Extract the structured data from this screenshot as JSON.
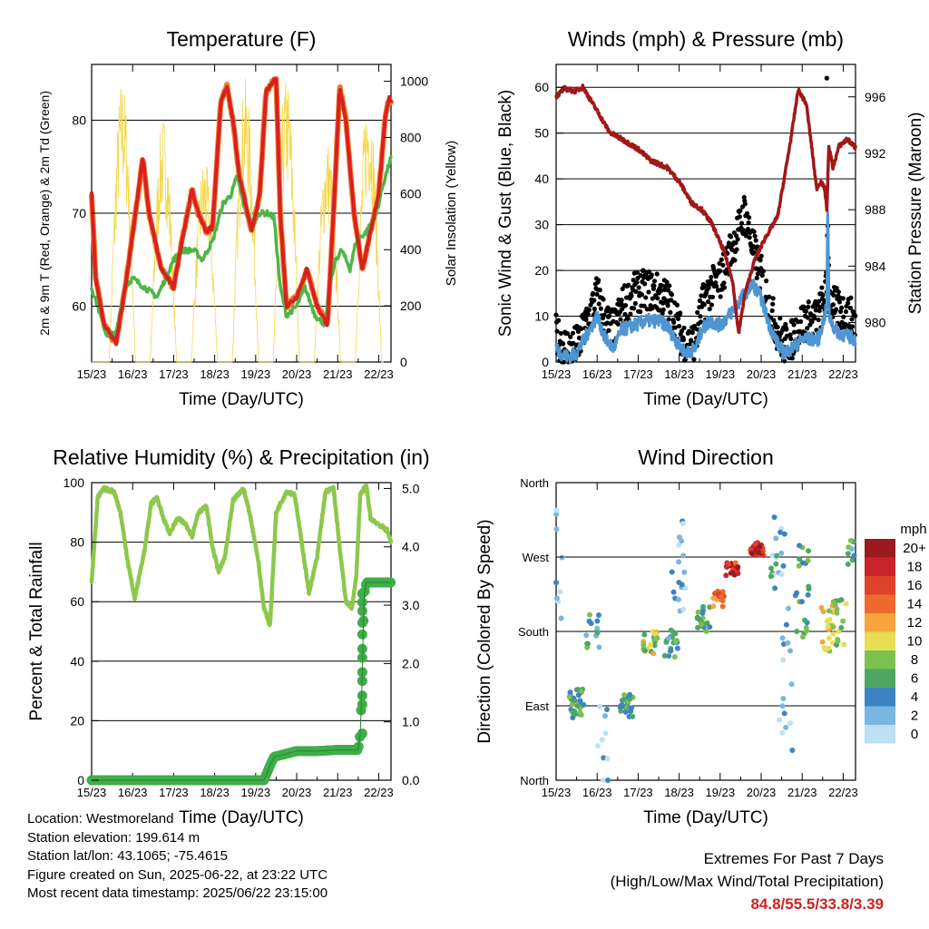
{
  "x_ticks": [
    "15/23",
    "16/23",
    "17/23",
    "18/23",
    "19/23",
    "20/23",
    "21/23",
    "22/23"
  ],
  "x_label": "Time (Day/UTC)",
  "temperature": {
    "title": "Temperature (F)",
    "ylabel_left": "2m & 9m T (Red, Orange) & 2m Td (Green)",
    "ylabel_right": "Solar Insolation (Yellow)",
    "ylim": [
      54,
      86
    ],
    "y2lim": [
      0,
      1060
    ],
    "yticks": [
      60,
      70,
      80
    ],
    "y2ticks": [
      0,
      200,
      400,
      600,
      800,
      1000
    ],
    "colors": {
      "t2m": "#d92020",
      "t9m": "#f07d2a",
      "td": "#4fb548",
      "solar": "#f5d84a"
    },
    "t2m": [
      [
        0.0,
        72
      ],
      [
        0.1,
        63
      ],
      [
        0.3,
        58
      ],
      [
        0.6,
        56
      ],
      [
        0.85,
        63
      ],
      [
        1.1,
        71
      ],
      [
        1.25,
        76
      ],
      [
        1.4,
        70
      ],
      [
        1.7,
        64
      ],
      [
        2.0,
        62
      ],
      [
        2.2,
        67
      ],
      [
        2.45,
        72.5
      ],
      [
        2.6,
        70
      ],
      [
        2.8,
        68
      ],
      [
        2.95,
        68.5
      ],
      [
        3.15,
        82
      ],
      [
        3.3,
        83.6
      ],
      [
        3.45,
        80
      ],
      [
        3.6,
        74
      ],
      [
        3.9,
        68
      ],
      [
        4.1,
        72
      ],
      [
        4.25,
        83
      ],
      [
        4.5,
        84.6
      ],
      [
        4.6,
        70
      ],
      [
        4.75,
        60
      ],
      [
        5.0,
        61
      ],
      [
        5.25,
        64
      ],
      [
        5.5,
        60
      ],
      [
        5.75,
        58
      ],
      [
        5.9,
        70
      ],
      [
        6.05,
        83.6
      ],
      [
        6.2,
        80
      ],
      [
        6.4,
        70
      ],
      [
        6.6,
        64
      ],
      [
        6.8,
        68
      ],
      [
        7.0,
        72
      ],
      [
        7.15,
        80
      ],
      [
        7.25,
        82.4
      ],
      [
        7.3,
        82
      ]
    ],
    "td": [
      [
        0.0,
        62
      ],
      [
        0.15,
        60
      ],
      [
        0.35,
        57
      ],
      [
        0.6,
        57
      ],
      [
        0.8,
        62
      ],
      [
        1.0,
        63
      ],
      [
        1.3,
        62
      ],
      [
        1.6,
        61
      ],
      [
        1.8,
        63
      ],
      [
        2.0,
        65
      ],
      [
        2.2,
        66
      ],
      [
        2.5,
        66
      ],
      [
        2.7,
        65
      ],
      [
        2.95,
        67
      ],
      [
        3.2,
        71
      ],
      [
        3.4,
        72
      ],
      [
        3.55,
        74
      ],
      [
        3.7,
        71
      ],
      [
        3.9,
        69
      ],
      [
        4.1,
        70
      ],
      [
        4.3,
        70
      ],
      [
        4.45,
        69.5
      ],
      [
        4.6,
        62
      ],
      [
        4.75,
        59
      ],
      [
        5.0,
        60
      ],
      [
        5.2,
        62
      ],
      [
        5.45,
        59
      ],
      [
        5.7,
        58
      ],
      [
        5.8,
        62
      ],
      [
        5.95,
        65
      ],
      [
        6.1,
        66
      ],
      [
        6.3,
        64
      ],
      [
        6.45,
        67
      ],
      [
        6.7,
        68
      ],
      [
        6.95,
        70
      ],
      [
        7.1,
        73
      ],
      [
        7.3,
        76
      ]
    ],
    "solar_peak_days": [
      0.75,
      1.75,
      2.75,
      3.75,
      4.75,
      5.75,
      6.75
    ],
    "solar_peak_values": [
      1020,
      880,
      730,
      1010,
      1020,
      800,
      980
    ]
  },
  "winds": {
    "title": "Winds (mph) & Pressure (mb)",
    "ylabel_left": "Sonic Wind & Gust (Blue, Black)",
    "ylabel_right": "Station Pressure (Maroon)",
    "ylim": [
      0,
      65
    ],
    "y2lim": [
      977.2,
      998.3
    ],
    "yticks": [
      0,
      10,
      20,
      30,
      40,
      50,
      60
    ],
    "y2ticks": [
      980,
      984,
      988,
      992,
      996
    ],
    "colors": {
      "wind": "#4f95d2",
      "gust": "#000000",
      "pressure": "#a01818"
    },
    "pressure": [
      [
        0.0,
        996
      ],
      [
        0.2,
        996.6
      ],
      [
        0.45,
        996.4
      ],
      [
        0.65,
        996.7
      ],
      [
        1.0,
        995
      ],
      [
        1.3,
        993.5
      ],
      [
        1.6,
        993
      ],
      [
        2.0,
        992.3
      ],
      [
        2.3,
        991.5
      ],
      [
        2.7,
        991
      ],
      [
        3.0,
        990
      ],
      [
        3.3,
        988.5
      ],
      [
        3.55,
        988
      ],
      [
        3.8,
        987
      ],
      [
        4.1,
        985
      ],
      [
        4.3,
        983
      ],
      [
        4.45,
        979.2
      ],
      [
        4.6,
        982
      ],
      [
        4.85,
        984.5
      ],
      [
        5.1,
        986
      ],
      [
        5.4,
        987.5
      ],
      [
        5.55,
        990
      ],
      [
        5.75,
        993.5
      ],
      [
        5.9,
        996.5
      ],
      [
        6.1,
        995.5
      ],
      [
        6.25,
        992
      ],
      [
        6.35,
        989.5
      ],
      [
        6.45,
        990
      ],
      [
        6.55,
        989.5
      ],
      [
        6.6,
        988
      ],
      [
        6.65,
        992.5
      ],
      [
        6.75,
        991
      ],
      [
        6.9,
        992.5
      ],
      [
        7.1,
        993
      ],
      [
        7.3,
        992.4
      ]
    ],
    "wind": [
      [
        0.0,
        3
      ],
      [
        0.1,
        2
      ],
      [
        0.3,
        1
      ],
      [
        0.5,
        2
      ],
      [
        0.75,
        6
      ],
      [
        1.0,
        10
      ],
      [
        1.2,
        5
      ],
      [
        1.4,
        3
      ],
      [
        1.6,
        7
      ],
      [
        1.9,
        8
      ],
      [
        2.2,
        9
      ],
      [
        2.5,
        9
      ],
      [
        2.7,
        8
      ],
      [
        2.9,
        5
      ],
      [
        3.05,
        3
      ],
      [
        3.2,
        2
      ],
      [
        3.4,
        3
      ],
      [
        3.55,
        7
      ],
      [
        3.75,
        9
      ],
      [
        4.0,
        8
      ],
      [
        4.2,
        10
      ],
      [
        4.45,
        13
      ],
      [
        4.6,
        15
      ],
      [
        4.8,
        17
      ],
      [
        5.0,
        14
      ],
      [
        5.2,
        8
      ],
      [
        5.4,
        4
      ],
      [
        5.55,
        2
      ],
      [
        5.75,
        3
      ],
      [
        6.0,
        5
      ],
      [
        6.2,
        5
      ],
      [
        6.4,
        5
      ],
      [
        6.6,
        12
      ],
      [
        6.62,
        33.8
      ],
      [
        6.66,
        10
      ],
      [
        6.8,
        7
      ],
      [
        7.0,
        6
      ],
      [
        7.3,
        5
      ]
    ],
    "gust": [
      [
        0.0,
        5
      ],
      [
        0.15,
        3
      ],
      [
        0.35,
        2
      ],
      [
        0.55,
        3
      ],
      [
        0.8,
        9
      ],
      [
        1.0,
        14
      ],
      [
        1.2,
        8
      ],
      [
        1.4,
        6
      ],
      [
        1.6,
        11
      ],
      [
        1.9,
        14
      ],
      [
        2.2,
        15
      ],
      [
        2.5,
        14
      ],
      [
        2.7,
        13
      ],
      [
        2.9,
        9
      ],
      [
        3.05,
        5
      ],
      [
        3.2,
        3
      ],
      [
        3.4,
        4
      ],
      [
        3.55,
        11
      ],
      [
        3.75,
        15
      ],
      [
        4.0,
        17
      ],
      [
        4.2,
        22
      ],
      [
        4.45,
        28
      ],
      [
        4.6,
        32
      ],
      [
        4.8,
        24
      ],
      [
        5.0,
        18
      ],
      [
        5.2,
        11
      ],
      [
        5.4,
        6
      ],
      [
        5.55,
        3
      ],
      [
        5.75,
        4
      ],
      [
        6.0,
        8
      ],
      [
        6.2,
        8
      ],
      [
        6.4,
        9
      ],
      [
        6.6,
        15
      ],
      [
        6.62,
        33
      ],
      [
        6.66,
        13
      ],
      [
        6.8,
        11
      ],
      [
        7.0,
        10
      ],
      [
        7.3,
        8
      ]
    ],
    "gust_max": [
      6.6,
      62
    ]
  },
  "rh": {
    "title": "Relative Humidity (%) & Precipitation (in)",
    "ylabel_left": "Percent & Total Rainfall",
    "ylim": [
      0,
      100
    ],
    "y2lim": [
      0,
      5.1
    ],
    "yticks": [
      0,
      20,
      40,
      60,
      80,
      100
    ],
    "y2ticks": [
      "0.0",
      "1.0",
      "2.0",
      "3.0",
      "4.0",
      "5.0"
    ],
    "colors": {
      "rh": "#8cc84b",
      "precip": "#3fae49"
    },
    "rh": [
      [
        0.0,
        67
      ],
      [
        0.15,
        95
      ],
      [
        0.3,
        98
      ],
      [
        0.55,
        97
      ],
      [
        0.7,
        90
      ],
      [
        0.9,
        72
      ],
      [
        1.05,
        61
      ],
      [
        1.3,
        78
      ],
      [
        1.45,
        93
      ],
      [
        1.6,
        95
      ],
      [
        1.75,
        88
      ],
      [
        1.9,
        83
      ],
      [
        2.1,
        88
      ],
      [
        2.3,
        86
      ],
      [
        2.45,
        82
      ],
      [
        2.6,
        90
      ],
      [
        2.8,
        92
      ],
      [
        2.95,
        78
      ],
      [
        3.1,
        70
      ],
      [
        3.25,
        75
      ],
      [
        3.45,
        94
      ],
      [
        3.7,
        98
      ],
      [
        3.85,
        90
      ],
      [
        4.05,
        75
      ],
      [
        4.2,
        58
      ],
      [
        4.35,
        52
      ],
      [
        4.5,
        90
      ],
      [
        4.75,
        97
      ],
      [
        4.95,
        96
      ],
      [
        5.1,
        82
      ],
      [
        5.3,
        63
      ],
      [
        5.5,
        75
      ],
      [
        5.7,
        97
      ],
      [
        5.9,
        98
      ],
      [
        6.05,
        78
      ],
      [
        6.2,
        60
      ],
      [
        6.35,
        58
      ],
      [
        6.45,
        68
      ],
      [
        6.55,
        96
      ],
      [
        6.7,
        99
      ],
      [
        6.8,
        88
      ],
      [
        7.0,
        86
      ],
      [
        7.2,
        84
      ],
      [
        7.3,
        80
      ]
    ],
    "precip": [
      [
        0.0,
        0
      ],
      [
        4.2,
        0
      ],
      [
        4.35,
        0.25
      ],
      [
        4.45,
        0.4
      ],
      [
        5.0,
        0.5
      ],
      [
        5.5,
        0.5
      ],
      [
        6.0,
        0.52
      ],
      [
        6.5,
        0.52
      ],
      [
        6.55,
        0.8
      ],
      [
        6.58,
        1.4
      ],
      [
        6.6,
        1.85
      ],
      [
        6.62,
        2.5
      ],
      [
        6.65,
        3.2
      ],
      [
        6.7,
        3.39
      ],
      [
        7.3,
        3.39
      ]
    ]
  },
  "wind_dir": {
    "title": "Wind Direction",
    "ylabel_left": "Direction (Colored By Speed)",
    "ytick_labels": [
      "North",
      "East",
      "South",
      "West",
      "North"
    ],
    "ylim": [
      0,
      360
    ],
    "colorbar_unit": "mph",
    "colorbar_labels": [
      "20+",
      "18",
      "16",
      "14",
      "12",
      "10",
      "8",
      "6",
      "4",
      "2",
      "0"
    ],
    "colorbar_colors": [
      "#9a1b1e",
      "#c8252a",
      "#e0432b",
      "#ee6a2c",
      "#f7a33e",
      "#e6de55",
      "#7cc04d",
      "#4ea665",
      "#3d83c2",
      "#79b6e0",
      "#bde0f5"
    ],
    "clusters": [
      {
        "x": 0.0,
        "dir": 250,
        "spread": 80,
        "speed": 1,
        "n": 14
      },
      {
        "x": 0.5,
        "dir": 92,
        "spread": 18,
        "speed": 6,
        "n": 28
      },
      {
        "x": 0.9,
        "dir": 180,
        "spread": 20,
        "speed": 5,
        "n": 14
      },
      {
        "x": 1.1,
        "dir": 40,
        "spread": 50,
        "speed": 2,
        "n": 10
      },
      {
        "x": 1.7,
        "dir": 90,
        "spread": 14,
        "speed": 6,
        "n": 24
      },
      {
        "x": 2.3,
        "dir": 168,
        "spread": 15,
        "speed": 9,
        "n": 20
      },
      {
        "x": 2.8,
        "dir": 165,
        "spread": 18,
        "speed": 5,
        "n": 20
      },
      {
        "x": 3.0,
        "dir": 260,
        "spread": 60,
        "speed": 2,
        "n": 18
      },
      {
        "x": 3.6,
        "dir": 195,
        "spread": 15,
        "speed": 6,
        "n": 18
      },
      {
        "x": 3.95,
        "dir": 225,
        "spread": 15,
        "speed": 14,
        "n": 16
      },
      {
        "x": 4.3,
        "dir": 255,
        "spread": 8,
        "speed": 17,
        "n": 18
      },
      {
        "x": 4.9,
        "dir": 280,
        "spread": 8,
        "speed": 18,
        "n": 24
      },
      {
        "x": 5.4,
        "dir": 270,
        "spread": 50,
        "speed": 3,
        "n": 18
      },
      {
        "x": 5.6,
        "dir": 120,
        "spread": 90,
        "speed": 2,
        "n": 16
      },
      {
        "x": 6.0,
        "dir": 230,
        "spread": 60,
        "speed": 6,
        "n": 22
      },
      {
        "x": 6.6,
        "dir": 185,
        "spread": 30,
        "speed": 10,
        "n": 22
      },
      {
        "x": 6.9,
        "dir": 190,
        "spread": 30,
        "speed": 7,
        "n": 16
      },
      {
        "x": 7.25,
        "dir": 275,
        "spread": 20,
        "speed": 5,
        "n": 12
      }
    ]
  },
  "footer": {
    "location": "Location: Westmoreland",
    "elevation": "Station elevation: 199.614 m",
    "latlon": "Station lat/lon: 43.1065; -75.4615",
    "created": "Figure created on Sun, 2025-06-22, at 23:22 UTC",
    "recent": "Most recent data timestamp: 2025/06/22 23:15:00",
    "extremes_title": "Extremes For Past 7 Days",
    "extremes_sub": "(High/Low/Max Wind/Total Precipitation)",
    "extremes_values": "84.8/55.5/33.8/3.39"
  }
}
